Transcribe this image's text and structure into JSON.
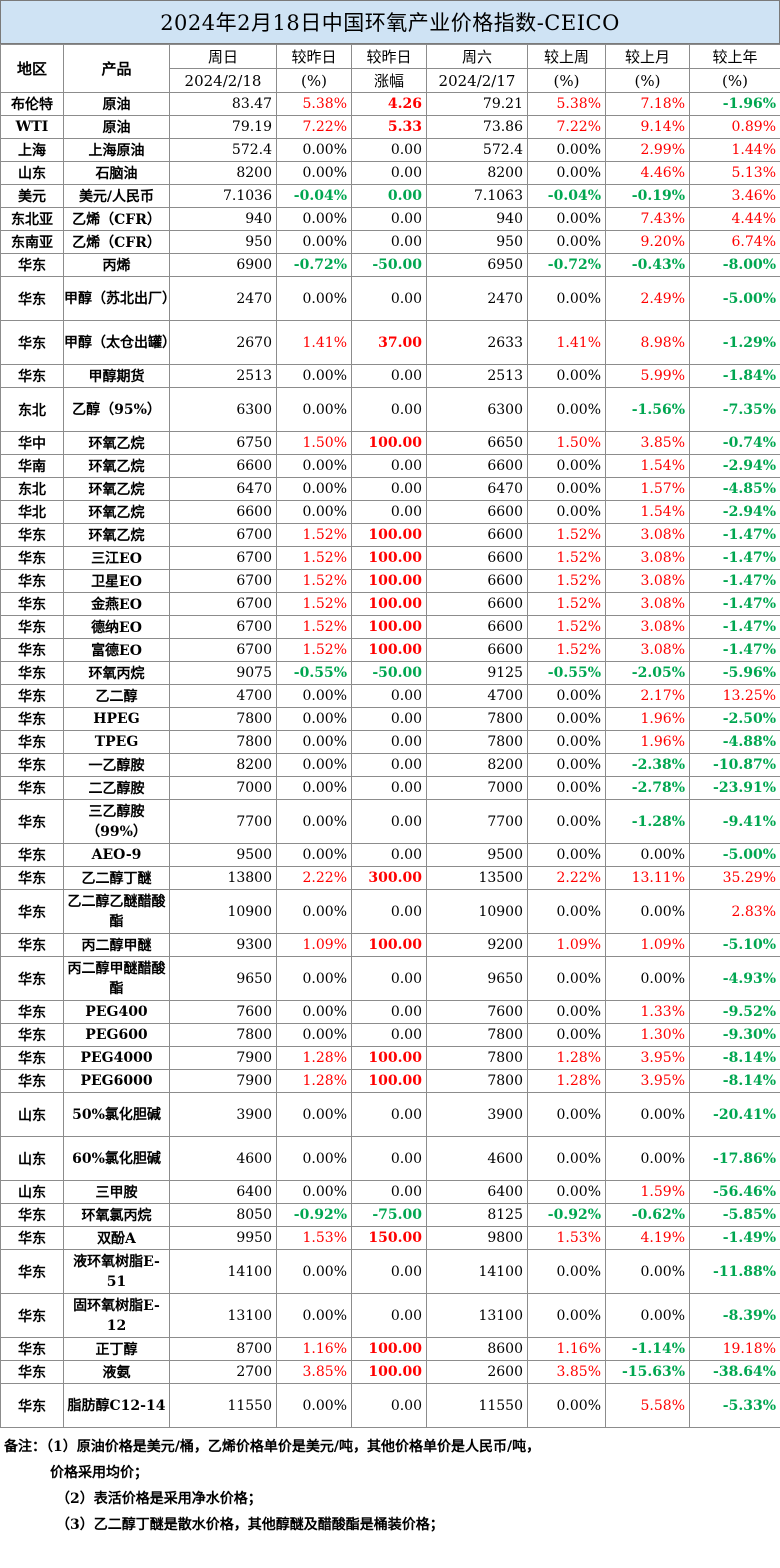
{
  "title": "2024年2月18日中国环氧产业价格指数-CEICO",
  "header": {
    "region": "地区",
    "product": "产品",
    "cur_day": "周日",
    "cur_date": "2024/2/18",
    "vs_prev_day": "较昨日",
    "vs_prev_day_unit": "(%)",
    "vs_prev_day2": "较昨日",
    "vs_prev_day2_sub": "涨幅",
    "prev_day": "周六",
    "prev_date": "2024/2/17",
    "vs_week": "较上周",
    "vs_week_unit": "(%)",
    "vs_month": "较上月",
    "vs_month_unit": "(%)",
    "vs_year": "较上年",
    "vs_year_unit": "(%)"
  },
  "colors": {
    "up": "#ff0000",
    "down": "#00a650",
    "title_bg": "#cfe3f4"
  },
  "rows": [
    {
      "region": "布伦特",
      "product": "原油",
      "cur": "83.47",
      "pct": "5.38%",
      "chg": "4.26",
      "prev": "79.21",
      "week": "5.38%",
      "month": "7.18%",
      "year": "-1.96%"
    },
    {
      "region": "WTI",
      "product": "原油",
      "cur": "79.19",
      "pct": "7.22%",
      "chg": "5.33",
      "prev": "73.86",
      "week": "7.22%",
      "month": "9.14%",
      "year": "0.89%"
    },
    {
      "region": "上海",
      "product": "上海原油",
      "cur": "572.4",
      "pct": "0.00%",
      "chg": "0.00",
      "prev": "572.4",
      "week": "0.00%",
      "month": "2.99%",
      "year": "1.44%"
    },
    {
      "region": "山东",
      "product": "石脑油",
      "cur": "8200",
      "pct": "0.00%",
      "chg": "0.00",
      "prev": "8200",
      "week": "0.00%",
      "month": "4.46%",
      "year": "5.13%"
    },
    {
      "region": "美元",
      "product": "美元/人民币",
      "cur": "7.1036",
      "pct": "-0.04%",
      "chg": "0.00",
      "prev": "7.1063",
      "week": "-0.04%",
      "month": "-0.19%",
      "year": "3.46%"
    },
    {
      "region": "东北亚",
      "product": "乙烯（CFR）",
      "cur": "940",
      "pct": "0.00%",
      "chg": "0.00",
      "prev": "940",
      "week": "0.00%",
      "month": "7.43%",
      "year": "4.44%"
    },
    {
      "region": "东南亚",
      "product": "乙烯（CFR）",
      "cur": "950",
      "pct": "0.00%",
      "chg": "0.00",
      "prev": "950",
      "week": "0.00%",
      "month": "9.20%",
      "year": "6.74%"
    },
    {
      "region": "华东",
      "product": "丙烯",
      "cur": "6900",
      "pct": "-0.72%",
      "chg": "-50.00",
      "prev": "6950",
      "week": "-0.72%",
      "month": "-0.43%",
      "year": "-8.00%"
    },
    {
      "region": "华东",
      "product": "甲醇（苏北出厂）",
      "cur": "2470",
      "pct": "0.00%",
      "chg": "0.00",
      "prev": "2470",
      "week": "0.00%",
      "month": "2.49%",
      "year": "-5.00%"
    },
    {
      "region": "华东",
      "product": "甲醇（太仓出罐）",
      "cur": "2670",
      "pct": "1.41%",
      "chg": "37.00",
      "prev": "2633",
      "week": "1.41%",
      "month": "8.98%",
      "year": "-1.29%"
    },
    {
      "region": "华东",
      "product": "甲醇期货",
      "cur": "2513",
      "pct": "0.00%",
      "chg": "0.00",
      "prev": "2513",
      "week": "0.00%",
      "month": "5.99%",
      "year": "-1.84%"
    },
    {
      "region": "东北",
      "product": "乙醇（95%）",
      "cur": "6300",
      "pct": "0.00%",
      "chg": "0.00",
      "prev": "6300",
      "week": "0.00%",
      "month": "-1.56%",
      "year": "-7.35%"
    },
    {
      "region": "华中",
      "product": "环氧乙烷",
      "cur": "6750",
      "pct": "1.50%",
      "chg": "100.00",
      "prev": "6650",
      "week": "1.50%",
      "month": "3.85%",
      "year": "-0.74%"
    },
    {
      "region": "华南",
      "product": "环氧乙烷",
      "cur": "6600",
      "pct": "0.00%",
      "chg": "0.00",
      "prev": "6600",
      "week": "0.00%",
      "month": "1.54%",
      "year": "-2.94%"
    },
    {
      "region": "东北",
      "product": "环氧乙烷",
      "cur": "6470",
      "pct": "0.00%",
      "chg": "0.00",
      "prev": "6470",
      "week": "0.00%",
      "month": "1.57%",
      "year": "-4.85%"
    },
    {
      "region": "华北",
      "product": "环氧乙烷",
      "cur": "6600",
      "pct": "0.00%",
      "chg": "0.00",
      "prev": "6600",
      "week": "0.00%",
      "month": "1.54%",
      "year": "-2.94%"
    },
    {
      "region": "华东",
      "product": "环氧乙烷",
      "cur": "6700",
      "pct": "1.52%",
      "chg": "100.00",
      "prev": "6600",
      "week": "1.52%",
      "month": "3.08%",
      "year": "-1.47%"
    },
    {
      "region": "华东",
      "product": "三江EO",
      "cur": "6700",
      "pct": "1.52%",
      "chg": "100.00",
      "prev": "6600",
      "week": "1.52%",
      "month": "3.08%",
      "year": "-1.47%"
    },
    {
      "region": "华东",
      "product": "卫星EO",
      "cur": "6700",
      "pct": "1.52%",
      "chg": "100.00",
      "prev": "6600",
      "week": "1.52%",
      "month": "3.08%",
      "year": "-1.47%"
    },
    {
      "region": "华东",
      "product": "金燕EO",
      "cur": "6700",
      "pct": "1.52%",
      "chg": "100.00",
      "prev": "6600",
      "week": "1.52%",
      "month": "3.08%",
      "year": "-1.47%"
    },
    {
      "region": "华东",
      "product": "德纳EO",
      "cur": "6700",
      "pct": "1.52%",
      "chg": "100.00",
      "prev": "6600",
      "week": "1.52%",
      "month": "3.08%",
      "year": "-1.47%"
    },
    {
      "region": "华东",
      "product": "富德EO",
      "cur": "6700",
      "pct": "1.52%",
      "chg": "100.00",
      "prev": "6600",
      "week": "1.52%",
      "month": "3.08%",
      "year": "-1.47%"
    },
    {
      "region": "华东",
      "product": "环氧丙烷",
      "cur": "9075",
      "pct": "-0.55%",
      "chg": "-50.00",
      "prev": "9125",
      "week": "-0.55%",
      "month": "-2.05%",
      "year": "-5.96%"
    },
    {
      "region": "华东",
      "product": "乙二醇",
      "cur": "4700",
      "pct": "0.00%",
      "chg": "0.00",
      "prev": "4700",
      "week": "0.00%",
      "month": "2.17%",
      "year": "13.25%"
    },
    {
      "region": "华东",
      "product": "HPEG",
      "cur": "7800",
      "pct": "0.00%",
      "chg": "0.00",
      "prev": "7800",
      "week": "0.00%",
      "month": "1.96%",
      "year": "-2.50%"
    },
    {
      "region": "华东",
      "product": "TPEG",
      "cur": "7800",
      "pct": "0.00%",
      "chg": "0.00",
      "prev": "7800",
      "week": "0.00%",
      "month": "1.96%",
      "year": "-4.88%"
    },
    {
      "region": "华东",
      "product": "一乙醇胺",
      "cur": "8200",
      "pct": "0.00%",
      "chg": "0.00",
      "prev": "8200",
      "week": "0.00%",
      "month": "-2.38%",
      "year": "-10.87%"
    },
    {
      "region": "华东",
      "product": "二乙醇胺",
      "cur": "7000",
      "pct": "0.00%",
      "chg": "0.00",
      "prev": "7000",
      "week": "0.00%",
      "month": "-2.78%",
      "year": "-23.91%"
    },
    {
      "region": "华东",
      "product": "三乙醇胺（99%）",
      "cur": "7700",
      "pct": "0.00%",
      "chg": "0.00",
      "prev": "7700",
      "week": "0.00%",
      "month": "-1.28%",
      "year": "-9.41%"
    },
    {
      "region": "华东",
      "product": "AEO-9",
      "cur": "9500",
      "pct": "0.00%",
      "chg": "0.00",
      "prev": "9500",
      "week": "0.00%",
      "month": "0.00%",
      "year": "-5.00%"
    },
    {
      "region": "华东",
      "product": "乙二醇丁醚",
      "cur": "13800",
      "pct": "2.22%",
      "chg": "300.00",
      "prev": "13500",
      "week": "2.22%",
      "month": "13.11%",
      "year": "35.29%"
    },
    {
      "region": "华东",
      "product": "乙二醇乙醚醋酸酯",
      "cur": "10900",
      "pct": "0.00%",
      "chg": "0.00",
      "prev": "10900",
      "week": "0.00%",
      "month": "0.00%",
      "year": "2.83%"
    },
    {
      "region": "华东",
      "product": "丙二醇甲醚",
      "cur": "9300",
      "pct": "1.09%",
      "chg": "100.00",
      "prev": "9200",
      "week": "1.09%",
      "month": "1.09%",
      "year": "-5.10%"
    },
    {
      "region": "华东",
      "product": "丙二醇甲醚醋酸酯",
      "cur": "9650",
      "pct": "0.00%",
      "chg": "0.00",
      "prev": "9650",
      "week": "0.00%",
      "month": "0.00%",
      "year": "-4.93%"
    },
    {
      "region": "华东",
      "product": "PEG400",
      "cur": "7600",
      "pct": "0.00%",
      "chg": "0.00",
      "prev": "7600",
      "week": "0.00%",
      "month": "1.33%",
      "year": "-9.52%"
    },
    {
      "region": "华东",
      "product": "PEG600",
      "cur": "7800",
      "pct": "0.00%",
      "chg": "0.00",
      "prev": "7800",
      "week": "0.00%",
      "month": "1.30%",
      "year": "-9.30%"
    },
    {
      "region": "华东",
      "product": "PEG4000",
      "cur": "7900",
      "pct": "1.28%",
      "chg": "100.00",
      "prev": "7800",
      "week": "1.28%",
      "month": "3.95%",
      "year": "-8.14%"
    },
    {
      "region": "华东",
      "product": "PEG6000",
      "cur": "7900",
      "pct": "1.28%",
      "chg": "100.00",
      "prev": "7800",
      "week": "1.28%",
      "month": "3.95%",
      "year": "-8.14%"
    },
    {
      "region": "山东",
      "product": "50%氯化胆碱",
      "cur": "3900",
      "pct": "0.00%",
      "chg": "0.00",
      "prev": "3900",
      "week": "0.00%",
      "month": "0.00%",
      "year": "-20.41%"
    },
    {
      "region": "山东",
      "product": "60%氯化胆碱",
      "cur": "4600",
      "pct": "0.00%",
      "chg": "0.00",
      "prev": "4600",
      "week": "0.00%",
      "month": "0.00%",
      "year": "-17.86%"
    },
    {
      "region": "山东",
      "product": "三甲胺",
      "cur": "6400",
      "pct": "0.00%",
      "chg": "0.00",
      "prev": "6400",
      "week": "0.00%",
      "month": "1.59%",
      "year": "-56.46%"
    },
    {
      "region": "华东",
      "product": "环氧氯丙烷",
      "cur": "8050",
      "pct": "-0.92%",
      "chg": "-75.00",
      "prev": "8125",
      "week": "-0.92%",
      "month": "-0.62%",
      "year": "-5.85%"
    },
    {
      "region": "华东",
      "product": "双酚A",
      "cur": "9950",
      "pct": "1.53%",
      "chg": "150.00",
      "prev": "9800",
      "week": "1.53%",
      "month": "4.19%",
      "year": "-1.49%"
    },
    {
      "region": "华东",
      "product": "液环氧树脂E-51",
      "cur": "14100",
      "pct": "0.00%",
      "chg": "0.00",
      "prev": "14100",
      "week": "0.00%",
      "month": "0.00%",
      "year": "-11.88%"
    },
    {
      "region": "华东",
      "product": "固环氧树脂E-12",
      "cur": "13100",
      "pct": "0.00%",
      "chg": "0.00",
      "prev": "13100",
      "week": "0.00%",
      "month": "0.00%",
      "year": "-8.39%"
    },
    {
      "region": "华东",
      "product": "正丁醇",
      "cur": "8700",
      "pct": "1.16%",
      "chg": "100.00",
      "prev": "8600",
      "week": "1.16%",
      "month": "-1.14%",
      "year": "19.18%"
    },
    {
      "region": "华东",
      "product": "液氨",
      "cur": "2700",
      "pct": "3.85%",
      "chg": "100.00",
      "prev": "2600",
      "week": "3.85%",
      "month": "-15.63%",
      "year": "-38.64%"
    },
    {
      "region": "华东",
      "product": "脂肪醇C12-14",
      "cur": "11550",
      "pct": "0.00%",
      "chg": "0.00",
      "prev": "11550",
      "week": "0.00%",
      "month": "5.58%",
      "year": "-5.33%"
    }
  ],
  "notes": {
    "line1": "备注：（1）原油价格是美元/桶，乙烯价格单价是美元/吨，其他价格单价是人民币/吨，",
    "line2": "价格采用均价；",
    "line3": "（2）表活价格是采用净水价格；",
    "line4": "（3）乙二醇丁醚是散水价格，其他醇醚及醋酸酯是桶装价格；"
  }
}
